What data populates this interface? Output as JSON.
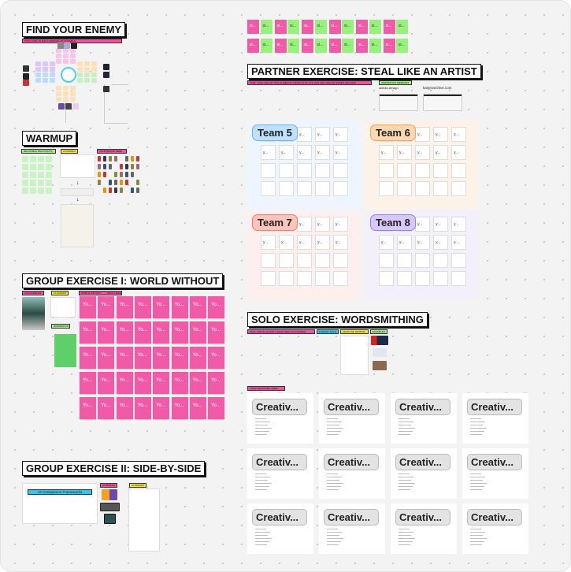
{
  "sections": {
    "enemy": {
      "title": "FIND YOUR ENEMY",
      "task": "TASK: FIND AS MANY ENEMIES AS POSSIBLE"
    },
    "warmup": {
      "title": "WARMUP",
      "labels": [
        "RELATABLE PAIN POINTS",
        "AI PROMPT",
        "YOUR BRAND HERE"
      ]
    },
    "group1": {
      "title": "GROUP EXERCISE I: WORLD WITHOUT",
      "labels": [
        "AD EXAMPLES",
        "AI PROMPT",
        "WORLD WITHOUT ___ IDEAS HERE",
        "INSPIRATION"
      ],
      "sticky_text": "Yo..."
    },
    "group2": {
      "title": "GROUP EXERCISE II: SIDE-BY-SIDE",
      "frameworks_title": "12 Comparison Frameworks",
      "labels": [
        "EXAMPLES",
        "AI PROMPT"
      ]
    },
    "top_stickies": {
      "text": "si..."
    },
    "partner": {
      "title": "PARTNER EXERCISE: STEAL LIKE AN ARTIST",
      "task": "TASK: TAKE ONE OR TWO ELEMENTS FROM AN AD YOU LIKE AND CREATE SOMETHING NEW",
      "inspiration_label": "INSPIRATION WEBSITES",
      "websites": [
        "adfolio.design",
        "kanjerarchive.com"
      ]
    },
    "teams": [
      {
        "name": "Team 5",
        "bg": "#eef5fe",
        "label_bg": "#bfe0fd",
        "border": "#6db3f2"
      },
      {
        "name": "Team 6",
        "bg": "#fdf2e7",
        "label_bg": "#fdd7b2",
        "border": "#f2a35e"
      },
      {
        "name": "Team 7",
        "bg": "#fdefee",
        "label_bg": "#fbc5bd",
        "border": "#ec7f6e"
      },
      {
        "name": "Team 8",
        "bg": "#f3f0fc",
        "label_bg": "#d6c8fb",
        "border": "#9a7ee8"
      }
    ],
    "team_cell_text": "y...",
    "solo": {
      "title": "SOLO EXERCISE: WORDSMITHING",
      "labels": [
        "TASK: WRITE AS MANY HEADLINES AS POSSIBLE",
        "FORMAT: SOLO",
        "HEADLINE WRITING",
        "EXAMPLES"
      ],
      "headlines_label": "YOUR HEADLINES HERE",
      "card_title": "Creativ..."
    }
  },
  "colors": {
    "pink": "#f0549e",
    "green": "#7ee36b",
    "canvas": "#f3f3f3"
  }
}
